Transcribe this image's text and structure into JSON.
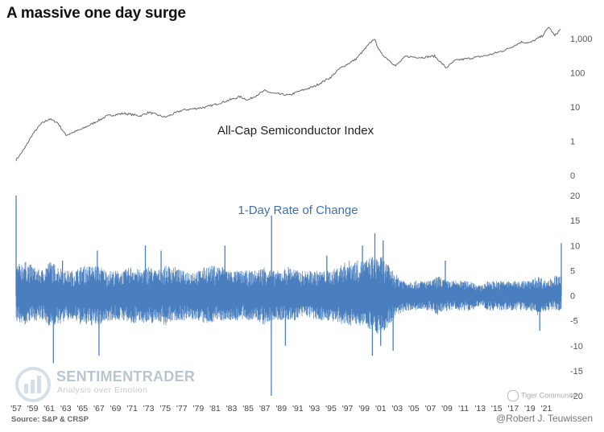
{
  "title": "A massive one day surge",
  "source": "Source: S&P & CRSP",
  "credit": "@Robert J. Teuwissen",
  "watermark": {
    "brand": "SENTIMENTRADER",
    "tagline": "Analysis over Emotion",
    "tiger": "Tiger Community"
  },
  "colors": {
    "price_line": "#666666",
    "roc_series": "#4a7fbf",
    "roc_label": "#3f71ae"
  },
  "chart_data": [
    {
      "type": "line",
      "title": "All-Cap Semiconductor Index",
      "yscale": "log",
      "ylim": [
        0,
        3000
      ],
      "ytick_labels": [
        "1,000",
        "100",
        "10",
        "1",
        "0"
      ],
      "ytick_values": [
        1000,
        100,
        10,
        1,
        0.1
      ],
      "x": [
        1957,
        1958,
        1959,
        1960,
        1961,
        1962,
        1963,
        1965,
        1968,
        1970,
        1972,
        1973,
        1975,
        1977,
        1980,
        1982,
        1984,
        1985,
        1987,
        1988,
        1990,
        1991,
        1993,
        1995,
        1996,
        1998,
        2000.2,
        2001,
        2002.8,
        2004,
        2006,
        2007.5,
        2008.9,
        2010,
        2012,
        2014,
        2016,
        2018,
        2019,
        2020.5,
        2021.3,
        2022,
        2022.7
      ],
      "values": [
        0.28,
        0.6,
        1.6,
        3.2,
        4.5,
        3.5,
        1.5,
        2.3,
        5.5,
        6.5,
        5.5,
        7.0,
        5.0,
        8.0,
        10.0,
        14.0,
        20.0,
        16.0,
        30.0,
        25.0,
        22.0,
        28.0,
        40.0,
        75.0,
        130.0,
        250.0,
        1000.0,
        380.0,
        160.0,
        300.0,
        280.0,
        310.0,
        140.0,
        230.0,
        270.0,
        330.0,
        460.0,
        800.0,
        750.0,
        1200.0,
        2200.0,
        1200.0,
        1900.0
      ]
    },
    {
      "type": "line",
      "title": "1-Day Rate of Change",
      "ylim": [
        -20,
        20
      ],
      "ytick_labels": [
        "20",
        "15",
        "10",
        "5",
        "0",
        "-5",
        "-10",
        "-15",
        "-20"
      ],
      "ytick_values": [
        20,
        15,
        10,
        5,
        0,
        -5,
        -10,
        -15,
        -20
      ],
      "x_tick_labels": [
        "'57",
        "'59",
        "'61",
        "'63",
        "'65",
        "'67",
        "'69",
        "'71",
        "'73",
        "'75",
        "'77",
        "'79",
        "'81",
        "'83",
        "'85",
        "'87",
        "'89",
        "'91",
        "'93",
        "'95",
        "'97",
        "'99",
        "'01",
        "'03",
        "'05",
        "'07",
        "'09",
        "'11",
        "'13",
        "'15",
        "'17",
        "'19",
        "'21"
      ],
      "x_tick_years": [
        1957,
        1959,
        1961,
        1963,
        1965,
        1967,
        1969,
        1971,
        1973,
        1975,
        1977,
        1979,
        1981,
        1983,
        1985,
        1987,
        1989,
        1991,
        1993,
        1995,
        1997,
        1999,
        2001,
        2003,
        2005,
        2007,
        2009,
        2011,
        2013,
        2015,
        2017,
        2019,
        2021
      ],
      "band_years": [
        1957,
        1958,
        1959,
        1960,
        1961,
        1962,
        1963,
        1964,
        1965,
        1966,
        1967,
        1968,
        1969,
        1970,
        1971,
        1972,
        1973,
        1974,
        1975,
        1976,
        1977,
        1978,
        1979,
        1980,
        1981,
        1982,
        1983,
        1984,
        1985,
        1986,
        1987,
        1988,
        1989,
        1990,
        1991,
        1992,
        1993,
        1994,
        1995,
        1996,
        1997,
        1998,
        1999,
        2000,
        2001,
        2002,
        2003,
        2004,
        2005,
        2006,
        2007,
        2008,
        2009,
        2010,
        2011,
        2012,
        2013,
        2014,
        2015,
        2016,
        2017,
        2018,
        2019,
        2020,
        2021,
        2022
      ],
      "band_high": [
        6,
        7,
        6,
        5,
        7,
        6,
        5,
        5,
        6,
        6,
        6,
        5,
        5,
        5,
        6,
        5,
        6,
        5,
        6,
        6,
        5,
        5,
        5,
        6,
        6,
        6,
        5,
        5,
        5,
        5,
        6,
        5,
        5,
        6,
        5,
        5,
        5,
        5,
        5,
        6,
        7,
        7,
        7,
        8,
        8,
        6,
        4,
        3,
        3,
        3,
        3,
        4,
        3,
        3,
        3,
        3,
        2,
        3,
        3,
        3,
        3,
        3,
        3,
        4,
        3,
        4
      ],
      "band_low": [
        -5,
        -6,
        -5,
        -5,
        -6,
        -6,
        -5,
        -5,
        -6,
        -6,
        -6,
        -5,
        -5,
        -5,
        -6,
        -5,
        -6,
        -5,
        -6,
        -5,
        -5,
        -5,
        -5,
        -6,
        -5,
        -5,
        -5,
        -5,
        -5,
        -5,
        -6,
        -5,
        -5,
        -5,
        -5,
        -4,
        -5,
        -5,
        -5,
        -6,
        -6,
        -6,
        -6,
        -7,
        -8,
        -6,
        -4,
        -3,
        -3,
        -3,
        -3,
        -4,
        -3,
        -3,
        -3,
        -3,
        -2,
        -3,
        -3,
        -3,
        -3,
        -3,
        -3,
        -4,
        -3,
        -3
      ],
      "spike_years": [
        1957.0,
        1961.5,
        1962.6,
        1966.8,
        1967.0,
        1972.6,
        1974.5,
        1982.2,
        1987.8,
        1987.83,
        1989.5,
        1994.5,
        1998.8,
        2000.0,
        2000.3,
        2001.0,
        2001.3,
        2002.5,
        2008.8,
        2020.2,
        2022.8
      ],
      "spike_values": [
        20,
        -13.5,
        7,
        9,
        -12,
        10,
        9,
        10,
        -20,
        16,
        -10,
        8,
        10,
        -12,
        12.5,
        -10,
        11,
        -11,
        7,
        -7,
        10.5
      ]
    }
  ]
}
